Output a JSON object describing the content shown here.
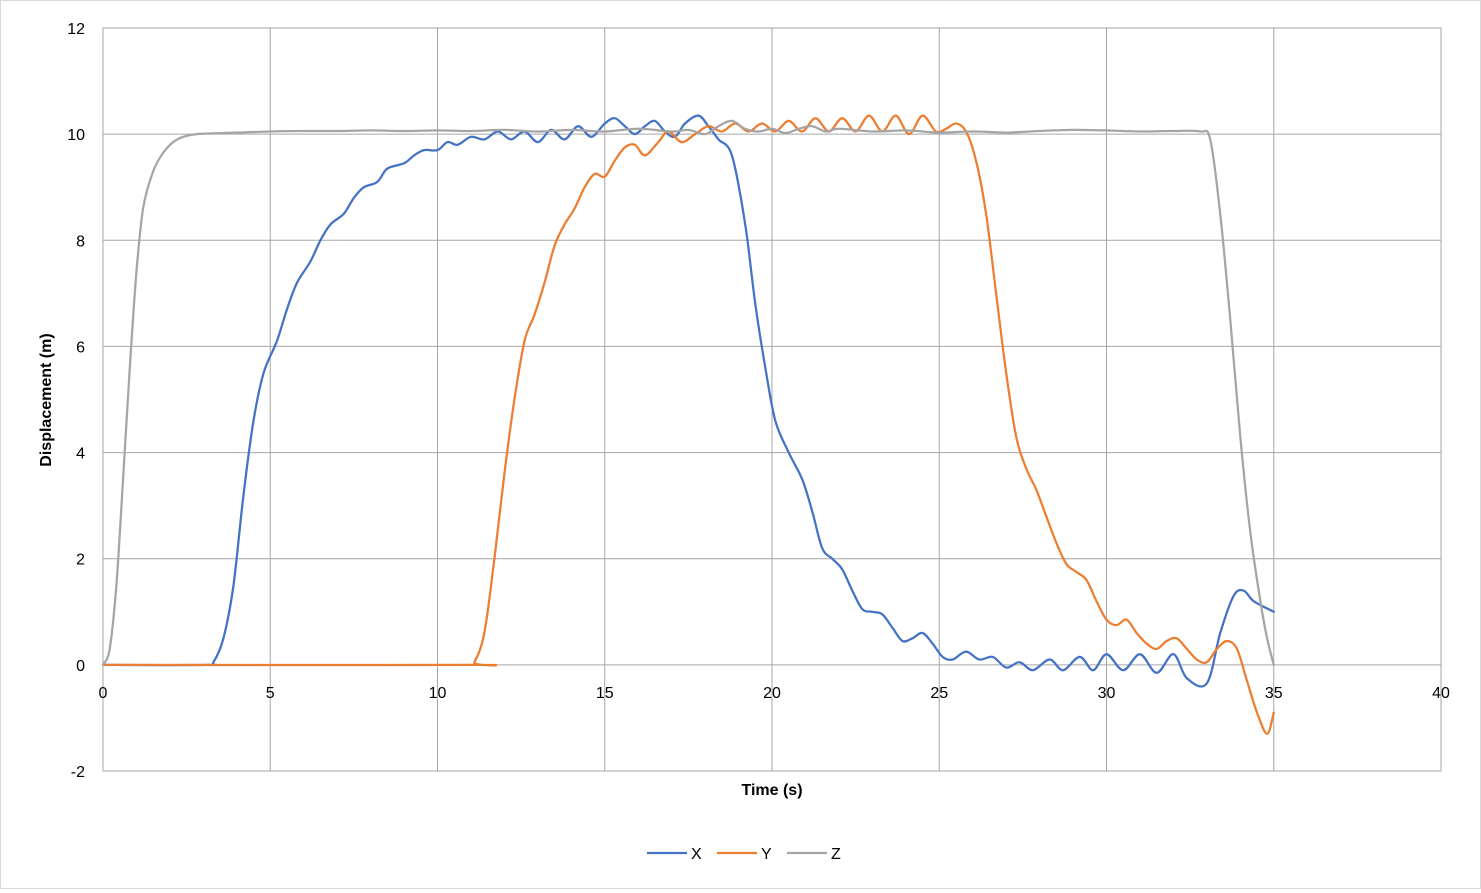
{
  "chart_data": {
    "type": "line",
    "title": "",
    "xlabel": "Time (s)",
    "ylabel": "Displacement (m)",
    "xlim": [
      0,
      40
    ],
    "ylim": [
      -2,
      12
    ],
    "xticks": [
      0,
      5,
      10,
      15,
      20,
      25,
      30,
      35,
      40
    ],
    "yticks": [
      -2,
      0,
      2,
      4,
      6,
      8,
      10,
      12
    ],
    "grid": true,
    "legend_position": "bottom",
    "series": [
      {
        "name": "X",
        "color": "#4472C4",
        "points": [
          [
            0,
            0
          ],
          [
            3.1,
            0
          ],
          [
            3.3,
            0.05
          ],
          [
            3.6,
            0.5
          ],
          [
            3.9,
            1.5
          ],
          [
            4.2,
            3.2
          ],
          [
            4.5,
            4.6
          ],
          [
            4.8,
            5.5
          ],
          [
            5.2,
            6.1
          ],
          [
            5.5,
            6.7
          ],
          [
            5.8,
            7.2
          ],
          [
            6.2,
            7.6
          ],
          [
            6.5,
            8.0
          ],
          [
            6.8,
            8.3
          ],
          [
            7.2,
            8.5
          ],
          [
            7.5,
            8.8
          ],
          [
            7.8,
            9.0
          ],
          [
            8.2,
            9.1
          ],
          [
            8.5,
            9.35
          ],
          [
            9.0,
            9.45
          ],
          [
            9.3,
            9.6
          ],
          [
            9.6,
            9.7
          ],
          [
            10.0,
            9.7
          ],
          [
            10.3,
            9.85
          ],
          [
            10.6,
            9.8
          ],
          [
            11.0,
            9.95
          ],
          [
            11.4,
            9.9
          ],
          [
            11.8,
            10.05
          ],
          [
            12.2,
            9.9
          ],
          [
            12.6,
            10.05
          ],
          [
            13.0,
            9.85
          ],
          [
            13.4,
            10.08
          ],
          [
            13.8,
            9.9
          ],
          [
            14.2,
            10.15
          ],
          [
            14.6,
            9.95
          ],
          [
            15.0,
            10.2
          ],
          [
            15.3,
            10.3
          ],
          [
            15.6,
            10.15
          ],
          [
            15.9,
            10.0
          ],
          [
            16.2,
            10.15
          ],
          [
            16.5,
            10.25
          ],
          [
            16.8,
            10.05
          ],
          [
            17.1,
            9.95
          ],
          [
            17.4,
            10.2
          ],
          [
            17.8,
            10.35
          ],
          [
            18.1,
            10.15
          ],
          [
            18.4,
            9.9
          ],
          [
            18.8,
            9.6
          ],
          [
            19.2,
            8.3
          ],
          [
            19.5,
            6.8
          ],
          [
            19.8,
            5.6
          ],
          [
            20.1,
            4.6
          ],
          [
            20.5,
            4.0
          ],
          [
            20.9,
            3.5
          ],
          [
            21.2,
            2.9
          ],
          [
            21.5,
            2.2
          ],
          [
            21.8,
            2.0
          ],
          [
            22.1,
            1.8
          ],
          [
            22.4,
            1.4
          ],
          [
            22.7,
            1.05
          ],
          [
            23.0,
            1.0
          ],
          [
            23.3,
            0.95
          ],
          [
            23.6,
            0.7
          ],
          [
            23.9,
            0.45
          ],
          [
            24.2,
            0.5
          ],
          [
            24.5,
            0.6
          ],
          [
            24.8,
            0.4
          ],
          [
            25.1,
            0.15
          ],
          [
            25.4,
            0.1
          ],
          [
            25.8,
            0.25
          ],
          [
            26.2,
            0.1
          ],
          [
            26.6,
            0.15
          ],
          [
            27.0,
            -0.05
          ],
          [
            27.4,
            0.05
          ],
          [
            27.8,
            -0.1
          ],
          [
            28.3,
            0.1
          ],
          [
            28.7,
            -0.1
          ],
          [
            29.2,
            0.15
          ],
          [
            29.6,
            -0.1
          ],
          [
            30.0,
            0.2
          ],
          [
            30.5,
            -0.1
          ],
          [
            31.0,
            0.2
          ],
          [
            31.5,
            -0.15
          ],
          [
            32.0,
            0.2
          ],
          [
            32.4,
            -0.25
          ],
          [
            33.0,
            -0.35
          ],
          [
            33.4,
            0.6
          ],
          [
            33.8,
            1.3
          ],
          [
            34.1,
            1.4
          ],
          [
            34.4,
            1.2
          ],
          [
            35.0,
            1.0
          ]
        ]
      },
      {
        "name": "Y",
        "color": "#ED7D31",
        "points": [
          [
            0,
            0
          ],
          [
            10.9,
            0
          ],
          [
            11.1,
            0.05
          ],
          [
            11.4,
            0.6
          ],
          [
            11.7,
            2.0
          ],
          [
            12.0,
            3.6
          ],
          [
            12.3,
            5.0
          ],
          [
            12.6,
            6.1
          ],
          [
            12.9,
            6.6
          ],
          [
            13.2,
            7.2
          ],
          [
            13.5,
            7.9
          ],
          [
            13.8,
            8.3
          ],
          [
            14.1,
            8.6
          ],
          [
            14.4,
            9.0
          ],
          [
            14.7,
            9.25
          ],
          [
            15.0,
            9.2
          ],
          [
            15.3,
            9.5
          ],
          [
            15.6,
            9.75
          ],
          [
            15.9,
            9.8
          ],
          [
            16.2,
            9.6
          ],
          [
            16.6,
            9.85
          ],
          [
            16.9,
            10.05
          ],
          [
            17.3,
            9.85
          ],
          [
            17.7,
            10.0
          ],
          [
            18.1,
            10.15
          ],
          [
            18.5,
            10.05
          ],
          [
            18.9,
            10.2
          ],
          [
            19.3,
            10.05
          ],
          [
            19.7,
            10.2
          ],
          [
            20.1,
            10.05
          ],
          [
            20.5,
            10.25
          ],
          [
            20.9,
            10.05
          ],
          [
            21.3,
            10.3
          ],
          [
            21.7,
            10.05
          ],
          [
            22.1,
            10.3
          ],
          [
            22.5,
            10.05
          ],
          [
            22.9,
            10.35
          ],
          [
            23.3,
            10.05
          ],
          [
            23.7,
            10.35
          ],
          [
            24.1,
            10.0
          ],
          [
            24.5,
            10.35
          ],
          [
            24.9,
            10.05
          ],
          [
            25.2,
            10.1
          ],
          [
            25.5,
            10.2
          ],
          [
            25.8,
            10.05
          ],
          [
            26.1,
            9.5
          ],
          [
            26.4,
            8.5
          ],
          [
            26.7,
            7.0
          ],
          [
            27.0,
            5.5
          ],
          [
            27.3,
            4.3
          ],
          [
            27.6,
            3.7
          ],
          [
            27.9,
            3.3
          ],
          [
            28.2,
            2.8
          ],
          [
            28.5,
            2.3
          ],
          [
            28.8,
            1.9
          ],
          [
            29.1,
            1.75
          ],
          [
            29.4,
            1.6
          ],
          [
            29.7,
            1.2
          ],
          [
            30.0,
            0.85
          ],
          [
            30.3,
            0.75
          ],
          [
            30.6,
            0.85
          ],
          [
            30.9,
            0.6
          ],
          [
            31.2,
            0.4
          ],
          [
            31.5,
            0.3
          ],
          [
            31.8,
            0.45
          ],
          [
            32.1,
            0.5
          ],
          [
            32.4,
            0.3
          ],
          [
            32.7,
            0.1
          ],
          [
            33.0,
            0.05
          ],
          [
            33.3,
            0.3
          ],
          [
            33.6,
            0.45
          ],
          [
            33.9,
            0.3
          ],
          [
            34.2,
            -0.3
          ],
          [
            34.5,
            -0.9
          ],
          [
            34.8,
            -1.3
          ],
          [
            35.0,
            -0.9
          ]
        ]
      },
      {
        "name": "Z",
        "color": "#A5A5A5",
        "points": [
          [
            0,
            0
          ],
          [
            0.2,
            0.3
          ],
          [
            0.4,
            1.5
          ],
          [
            0.6,
            3.5
          ],
          [
            0.8,
            5.6
          ],
          [
            1.0,
            7.4
          ],
          [
            1.2,
            8.6
          ],
          [
            1.5,
            9.3
          ],
          [
            1.8,
            9.65
          ],
          [
            2.1,
            9.85
          ],
          [
            2.4,
            9.95
          ],
          [
            2.8,
            10.0
          ],
          [
            3.5,
            10.02
          ],
          [
            4.0,
            10.03
          ],
          [
            5.0,
            10.05
          ],
          [
            6.0,
            10.06
          ],
          [
            7.0,
            10.06
          ],
          [
            8.0,
            10.07
          ],
          [
            9.0,
            10.06
          ],
          [
            10.0,
            10.07
          ],
          [
            11.0,
            10.06
          ],
          [
            12.0,
            10.08
          ],
          [
            13.0,
            10.05
          ],
          [
            14.0,
            10.08
          ],
          [
            15.0,
            10.05
          ],
          [
            16.0,
            10.1
          ],
          [
            17.0,
            10.05
          ],
          [
            17.5,
            10.08
          ],
          [
            18.0,
            10.0
          ],
          [
            18.4,
            10.15
          ],
          [
            18.8,
            10.25
          ],
          [
            19.2,
            10.1
          ],
          [
            19.6,
            10.05
          ],
          [
            20.0,
            10.1
          ],
          [
            20.4,
            10.02
          ],
          [
            20.8,
            10.1
          ],
          [
            21.2,
            10.15
          ],
          [
            21.6,
            10.05
          ],
          [
            22.0,
            10.1
          ],
          [
            23.0,
            10.05
          ],
          [
            24.0,
            10.07
          ],
          [
            25.0,
            10.03
          ],
          [
            26.0,
            10.05
          ],
          [
            27.0,
            10.03
          ],
          [
            28.0,
            10.06
          ],
          [
            29.0,
            10.08
          ],
          [
            30.0,
            10.07
          ],
          [
            31.0,
            10.05
          ],
          [
            32.0,
            10.06
          ],
          [
            32.8,
            10.05
          ],
          [
            33.1,
            9.9
          ],
          [
            33.4,
            8.5
          ],
          [
            33.7,
            6.5
          ],
          [
            34.0,
            4.3
          ],
          [
            34.3,
            2.5
          ],
          [
            34.6,
            1.2
          ],
          [
            34.8,
            0.5
          ],
          [
            35.0,
            0.0
          ]
        ]
      }
    ]
  }
}
